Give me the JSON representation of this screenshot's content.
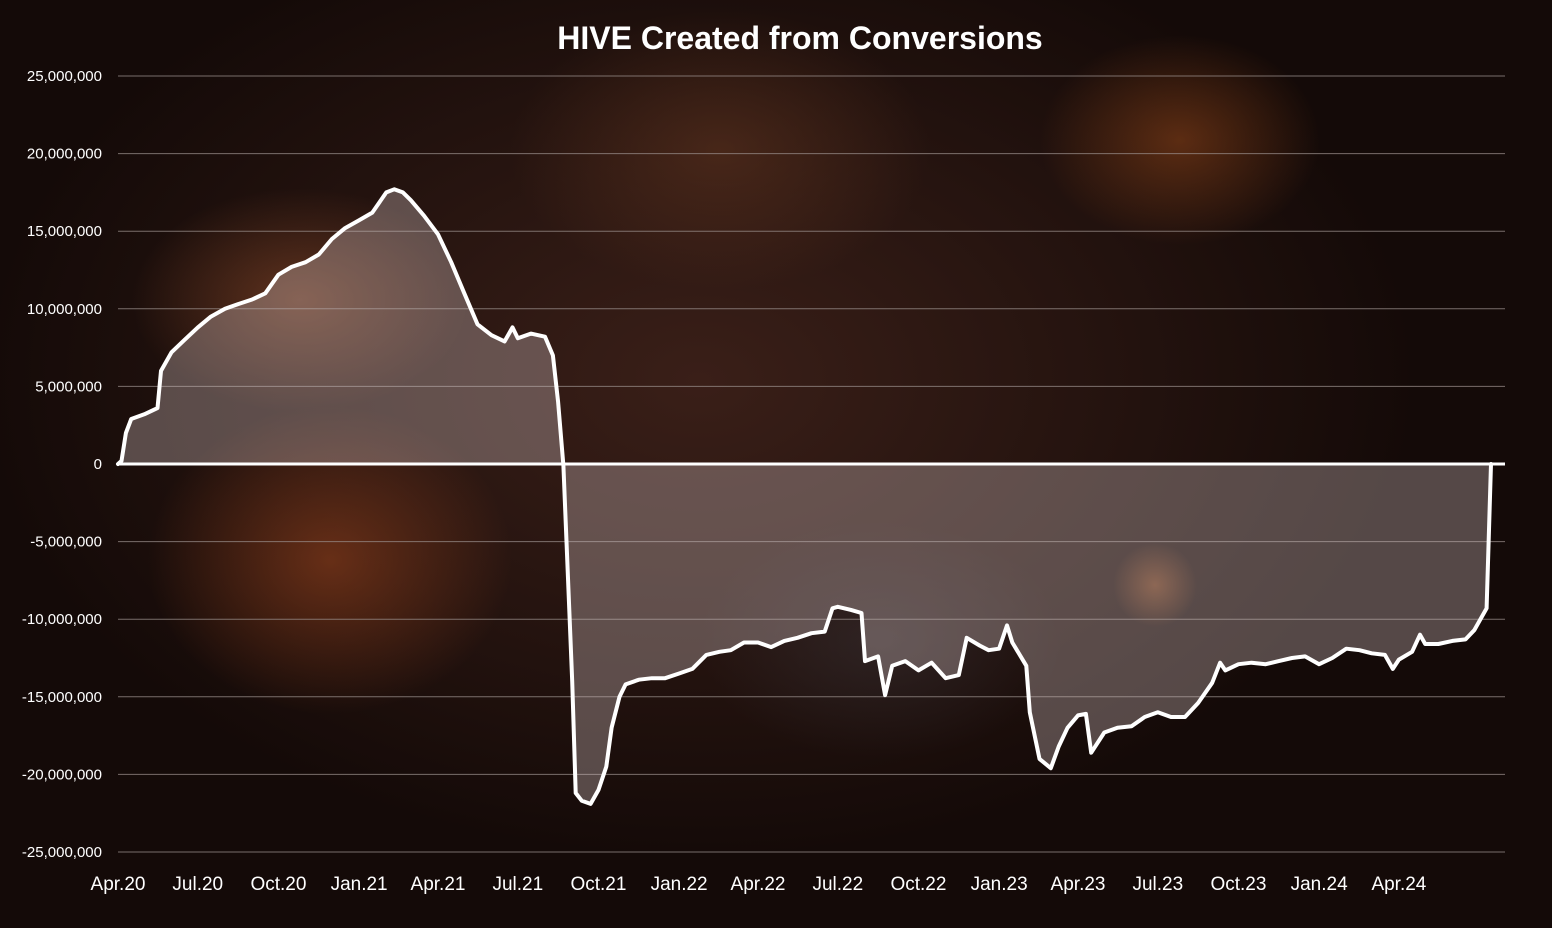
{
  "chart_data": {
    "type": "area",
    "title": "HIVE Created from Conversions",
    "xlabel": "",
    "ylabel": "",
    "ylim": [
      -25000000,
      25000000
    ],
    "yticks": [
      25000000,
      20000000,
      15000000,
      10000000,
      5000000,
      0,
      -5000000,
      -10000000,
      -15000000,
      -20000000,
      -25000000
    ],
    "ytick_labels": [
      "25,000,000",
      "20,000,000",
      "15,000,000",
      "10,000,000",
      "5,000,000",
      "0",
      "-5,000,000",
      "-10,000,000",
      "-15,000,000",
      "-20,000,000",
      "-25,000,000"
    ],
    "xticks": [
      "2020-04-01",
      "2020-07-01",
      "2020-10-01",
      "2021-01-01",
      "2021-04-01",
      "2021-07-01",
      "2021-10-01",
      "2022-01-01",
      "2022-04-01",
      "2022-07-01",
      "2022-10-01",
      "2023-01-01",
      "2023-04-01",
      "2023-07-01",
      "2023-10-01",
      "2024-01-01",
      "2024-04-01"
    ],
    "xtick_labels": [
      "Apr.20",
      "Jul.20",
      "Oct.20",
      "Jan.21",
      "Apr.21",
      "Jul.21",
      "Oct.21",
      "Jan.22",
      "Apr.22",
      "Jul.22",
      "Oct.22",
      "Jan.23",
      "Apr.23",
      "Jul.23",
      "Oct.23",
      "Jan.24",
      "Apr.24"
    ],
    "xlim": [
      "2020-04-01",
      "2024-07-31"
    ],
    "grid": true,
    "legend": "none",
    "colors": {
      "line": "#ffffff",
      "fill": "rgba(205,190,190,0.35)",
      "grid": "#9a8f8c",
      "text": "#ffffff"
    },
    "series": [
      {
        "points": [
          [
            "2020-04-01",
            0
          ],
          [
            "2020-04-05",
            200000
          ],
          [
            "2020-04-10",
            2000000
          ],
          [
            "2020-04-16",
            2900000
          ],
          [
            "2020-05-01",
            3200000
          ],
          [
            "2020-05-16",
            3600000
          ],
          [
            "2020-05-20",
            6000000
          ],
          [
            "2020-06-01",
            7200000
          ],
          [
            "2020-06-16",
            8000000
          ],
          [
            "2020-07-01",
            8800000
          ],
          [
            "2020-07-16",
            9500000
          ],
          [
            "2020-08-01",
            10000000
          ],
          [
            "2020-08-16",
            10300000
          ],
          [
            "2020-09-01",
            10600000
          ],
          [
            "2020-09-16",
            11000000
          ],
          [
            "2020-10-01",
            12200000
          ],
          [
            "2020-10-16",
            12700000
          ],
          [
            "2020-11-01",
            13000000
          ],
          [
            "2020-11-16",
            13500000
          ],
          [
            "2020-12-01",
            14500000
          ],
          [
            "2020-12-16",
            15200000
          ],
          [
            "2021-01-01",
            15700000
          ],
          [
            "2021-01-16",
            16200000
          ],
          [
            "2021-02-01",
            17500000
          ],
          [
            "2021-02-10",
            17700000
          ],
          [
            "2021-02-20",
            17500000
          ],
          [
            "2021-03-01",
            17000000
          ],
          [
            "2021-03-16",
            16000000
          ],
          [
            "2021-04-01",
            14800000
          ],
          [
            "2021-04-16",
            13000000
          ],
          [
            "2021-05-01",
            11000000
          ],
          [
            "2021-05-16",
            9000000
          ],
          [
            "2021-06-01",
            8300000
          ],
          [
            "2021-06-16",
            7900000
          ],
          [
            "2021-06-25",
            8800000
          ],
          [
            "2021-07-01",
            8100000
          ],
          [
            "2021-07-16",
            8400000
          ],
          [
            "2021-08-01",
            8200000
          ],
          [
            "2021-08-10",
            7000000
          ],
          [
            "2021-08-16",
            4000000
          ],
          [
            "2021-08-22",
            -100000
          ],
          [
            "2021-09-01",
            -14000000
          ],
          [
            "2021-09-05",
            -21200000
          ],
          [
            "2021-09-12",
            -21700000
          ],
          [
            "2021-09-22",
            -21900000
          ],
          [
            "2021-10-01",
            -21000000
          ],
          [
            "2021-10-10",
            -19500000
          ],
          [
            "2021-10-16",
            -17000000
          ],
          [
            "2021-10-25",
            -15000000
          ],
          [
            "2021-11-01",
            -14200000
          ],
          [
            "2021-11-16",
            -13900000
          ],
          [
            "2021-12-01",
            -13800000
          ],
          [
            "2021-12-16",
            -13800000
          ],
          [
            "2022-01-01",
            -13500000
          ],
          [
            "2022-01-16",
            -13200000
          ],
          [
            "2022-02-01",
            -12300000
          ],
          [
            "2022-02-16",
            -12100000
          ],
          [
            "2022-03-01",
            -12000000
          ],
          [
            "2022-03-16",
            -11500000
          ],
          [
            "2022-04-01",
            -11500000
          ],
          [
            "2022-04-16",
            -11800000
          ],
          [
            "2022-05-01",
            -11400000
          ],
          [
            "2022-05-16",
            -11200000
          ],
          [
            "2022-06-01",
            -10900000
          ],
          [
            "2022-06-16",
            -10800000
          ],
          [
            "2022-06-25",
            -9300000
          ],
          [
            "2022-07-01",
            -9200000
          ],
          [
            "2022-07-16",
            -9400000
          ],
          [
            "2022-07-28",
            -9600000
          ],
          [
            "2022-08-01",
            -12700000
          ],
          [
            "2022-08-16",
            -12400000
          ],
          [
            "2022-08-24",
            -14900000
          ],
          [
            "2022-09-01",
            -13000000
          ],
          [
            "2022-09-16",
            -12700000
          ],
          [
            "2022-10-01",
            -13300000
          ],
          [
            "2022-10-16",
            -12800000
          ],
          [
            "2022-11-01",
            -13800000
          ],
          [
            "2022-11-16",
            -13600000
          ],
          [
            "2022-11-25",
            -11200000
          ],
          [
            "2022-12-10",
            -11700000
          ],
          [
            "2022-12-20",
            -12000000
          ],
          [
            "2023-01-01",
            -11900000
          ],
          [
            "2023-01-10",
            -10400000
          ],
          [
            "2023-01-16",
            -11500000
          ],
          [
            "2023-02-01",
            -13000000
          ],
          [
            "2023-02-05",
            -16000000
          ],
          [
            "2023-02-16",
            -19000000
          ],
          [
            "2023-03-01",
            -19600000
          ],
          [
            "2023-03-10",
            -18200000
          ],
          [
            "2023-03-20",
            -17000000
          ],
          [
            "2023-04-01",
            -16200000
          ],
          [
            "2023-04-10",
            -16100000
          ],
          [
            "2023-04-16",
            -18600000
          ],
          [
            "2023-05-01",
            -17300000
          ],
          [
            "2023-05-16",
            -17000000
          ],
          [
            "2023-06-01",
            -16900000
          ],
          [
            "2023-06-16",
            -16300000
          ],
          [
            "2023-07-01",
            -16000000
          ],
          [
            "2023-07-16",
            -16300000
          ],
          [
            "2023-08-01",
            -16300000
          ],
          [
            "2023-08-16",
            -15400000
          ],
          [
            "2023-09-01",
            -14100000
          ],
          [
            "2023-09-10",
            -12800000
          ],
          [
            "2023-09-16",
            -13300000
          ],
          [
            "2023-10-01",
            -12900000
          ],
          [
            "2023-10-16",
            -12800000
          ],
          [
            "2023-11-01",
            -12900000
          ],
          [
            "2023-11-16",
            -12700000
          ],
          [
            "2023-12-01",
            -12500000
          ],
          [
            "2023-12-16",
            -12400000
          ],
          [
            "2024-01-01",
            -12900000
          ],
          [
            "2024-01-16",
            -12500000
          ],
          [
            "2024-02-01",
            -11900000
          ],
          [
            "2024-02-16",
            -12000000
          ],
          [
            "2024-03-01",
            -12200000
          ],
          [
            "2024-03-16",
            -12300000
          ],
          [
            "2024-03-25",
            -13200000
          ],
          [
            "2024-04-01",
            -12600000
          ],
          [
            "2024-04-16",
            -12100000
          ],
          [
            "2024-04-25",
            -11000000
          ],
          [
            "2024-05-01",
            -11600000
          ],
          [
            "2024-05-16",
            -11600000
          ],
          [
            "2024-06-01",
            -11400000
          ],
          [
            "2024-06-16",
            -11300000
          ],
          [
            "2024-06-26",
            -10700000
          ],
          [
            "2024-07-10",
            -9300000
          ],
          [
            "2024-07-15",
            0
          ]
        ]
      }
    ]
  }
}
